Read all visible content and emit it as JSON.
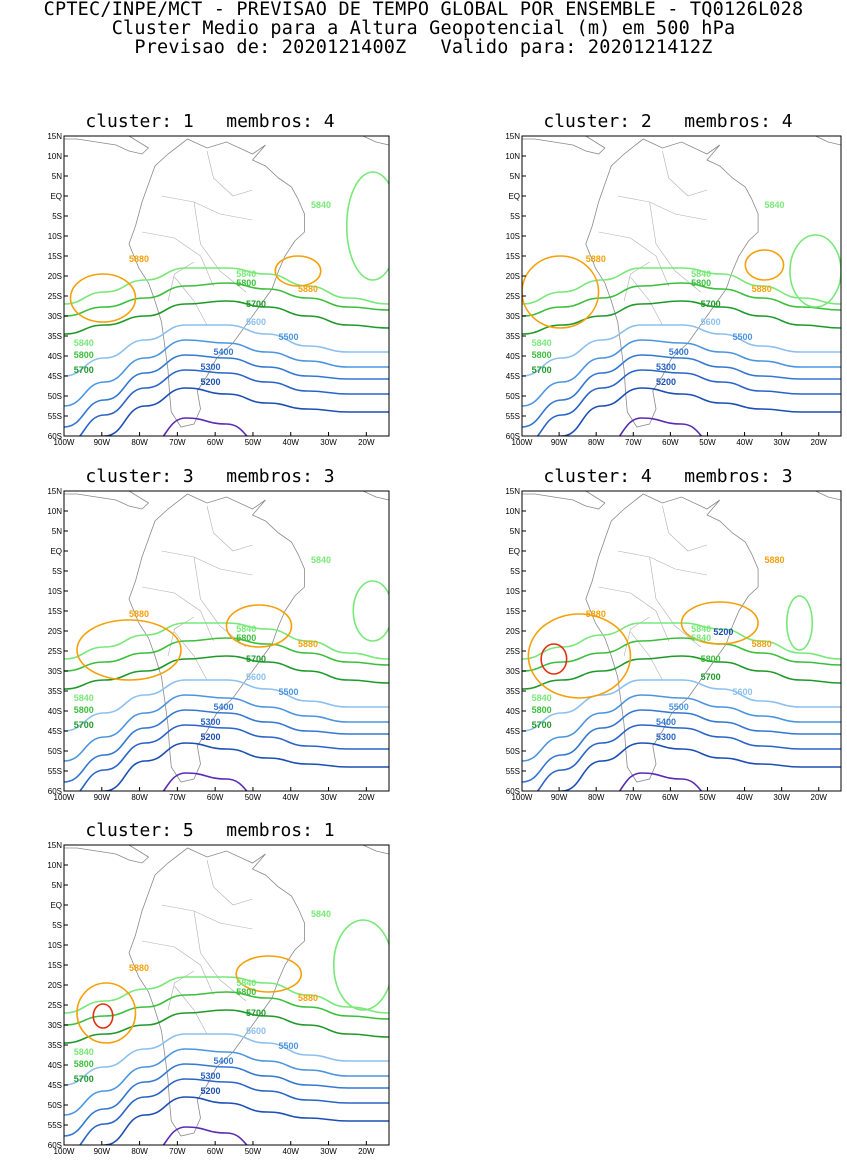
{
  "header": {
    "line1": "CPTEC/INPE/MCT - PREVISAO DE TEMPO GLOBAL POR ENSEMBLE - TQ0126L028",
    "line2": "Cluster Medio para a Altura Geopotencial (m) em 500 hPa",
    "line3": "Previsao de: 2020121400Z   Valido para: 2020121412Z"
  },
  "axes": {
    "lat_ticks": [
      "15N",
      "10N",
      "5N",
      "EQ",
      "5S",
      "10S",
      "15S",
      "20S",
      "25S",
      "30S",
      "35S",
      "40S",
      "45S",
      "50S",
      "55S",
      "60S"
    ],
    "lon_ticks": [
      "100W",
      "90W",
      "80W",
      "70W",
      "60W",
      "50W",
      "40W",
      "30W",
      "20W"
    ]
  },
  "colors": {
    "c5200": "#1c4fb4",
    "c5300": "#2a64c8",
    "c5400": "#3478d2",
    "c5500": "#4b95e0",
    "c5600": "#8cc0ee",
    "c5700": "#1f9a2a",
    "c5800": "#3cbf3c",
    "c5840": "#78e878",
    "c5880": "#f5a00a",
    "c5920": "#e03010",
    "purple": "#5a2ab4",
    "coast": "#8a8a8a"
  },
  "panels": [
    {
      "title": "cluster: 1   membros: 4",
      "labels": [
        "5880",
        "5880",
        "5840",
        "5840",
        "5840",
        "5800",
        "5800",
        "5700",
        "5700",
        "5600",
        "5500",
        "5400",
        "5300",
        "5200"
      ]
    },
    {
      "title": "cluster: 2   membros: 4",
      "labels": [
        "5880",
        "5880",
        "5840",
        "5840",
        "5840",
        "5800",
        "5800",
        "5700",
        "5700",
        "5600",
        "5500",
        "5400",
        "5300",
        "5200"
      ]
    },
    {
      "title": "cluster: 3   membros: 3",
      "labels": [
        "5880",
        "5880",
        "5840",
        "5840",
        "5840",
        "5800",
        "5800",
        "5700",
        "5700",
        "5600",
        "5500",
        "5400",
        "5300",
        "5200"
      ]
    },
    {
      "title": "cluster: 4   membros: 3",
      "labels": [
        "5880",
        "5880",
        "5880",
        "5840",
        "5840",
        "5840",
        "5800",
        "5800",
        "5700",
        "5700",
        "5600",
        "5500",
        "5400",
        "5300",
        "5200"
      ]
    },
    {
      "title": "cluster: 5   membros: 1",
      "labels": [
        "5880",
        "5880",
        "5840",
        "5840",
        "5840",
        "5800",
        "5800",
        "5700",
        "5700",
        "5600",
        "5500",
        "5400",
        "5300",
        "5200"
      ]
    }
  ]
}
